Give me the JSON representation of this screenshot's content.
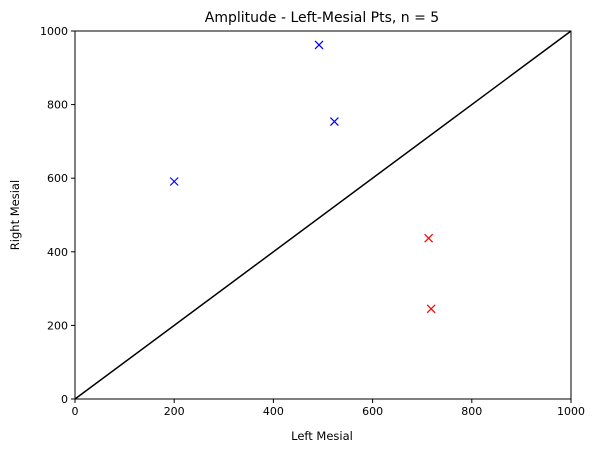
{
  "chart_data": {
    "type": "scatter",
    "title": "Amplitude - Left-Mesial Pts, n = 5",
    "xlabel": "Left Mesial",
    "ylabel": "Right Mesial",
    "xlim": [
      0,
      1000
    ],
    "ylim": [
      0,
      1000
    ],
    "xticks": [
      0,
      200,
      400,
      600,
      800,
      1000
    ],
    "yticks": [
      0,
      200,
      400,
      600,
      800,
      1000
    ],
    "grid": false,
    "series": [
      {
        "color": "#0000ff",
        "marker": "x",
        "points": [
          {
            "x": 492,
            "y": 962
          },
          {
            "x": 523,
            "y": 754
          },
          {
            "x": 200,
            "y": 591
          }
        ]
      },
      {
        "color": "#ff0000",
        "marker": "x",
        "points": [
          {
            "x": 713,
            "y": 437
          },
          {
            "x": 718,
            "y": 245
          }
        ]
      }
    ],
    "reference_line": {
      "from": {
        "x": 0,
        "y": 0
      },
      "to": {
        "x": 1000,
        "y": 1000
      },
      "color": "#000000"
    }
  }
}
